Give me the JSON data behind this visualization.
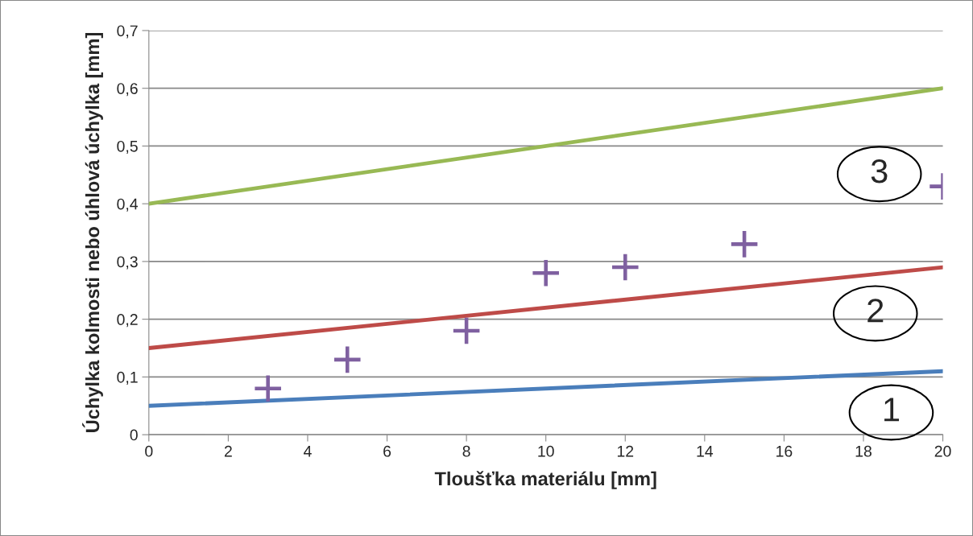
{
  "chart_data": {
    "type": "line",
    "xlabel": "Tloušťka materiálu [mm]",
    "ylabel": "Úchylka kolmosti nebo úhlová úchylka [mm]",
    "xlim": [
      0,
      20
    ],
    "xticks": [
      0,
      2,
      4,
      6,
      8,
      10,
      12,
      14,
      16,
      18,
      20
    ],
    "ylim": [
      0,
      0.7
    ],
    "yticks": [
      {
        "value": 0,
        "label": "0"
      },
      {
        "value": 0.1,
        "label": "0,1"
      },
      {
        "value": 0.2,
        "label": "0,2"
      },
      {
        "value": 0.3,
        "label": "0,3"
      },
      {
        "value": 0.4,
        "label": "0,4"
      },
      {
        "value": 0.5,
        "label": "0,5"
      },
      {
        "value": 0.6,
        "label": "0,6"
      },
      {
        "value": 0.7,
        "label": "0,7"
      }
    ],
    "grid": "y",
    "legend": false,
    "series": [
      {
        "color": "#4a7ebb",
        "x": [
          0,
          20
        ],
        "values": [
          0.05,
          0.11
        ],
        "marker": "none"
      },
      {
        "color": "#be4b48",
        "x": [
          0,
          20
        ],
        "values": [
          0.15,
          0.29
        ],
        "marker": "none"
      },
      {
        "color": "#98b954",
        "x": [
          0,
          20
        ],
        "values": [
          0.4,
          0.6
        ],
        "marker": "none"
      },
      {
        "type": "scatter",
        "color": "#7f60a0",
        "x": [
          3,
          5,
          8,
          10,
          12,
          15,
          20
        ],
        "values": [
          0.08,
          0.13,
          0.18,
          0.28,
          0.29,
          0.33,
          0.43
        ],
        "marker": "cross"
      }
    ],
    "annotations": [
      "1",
      "2",
      "3"
    ]
  }
}
